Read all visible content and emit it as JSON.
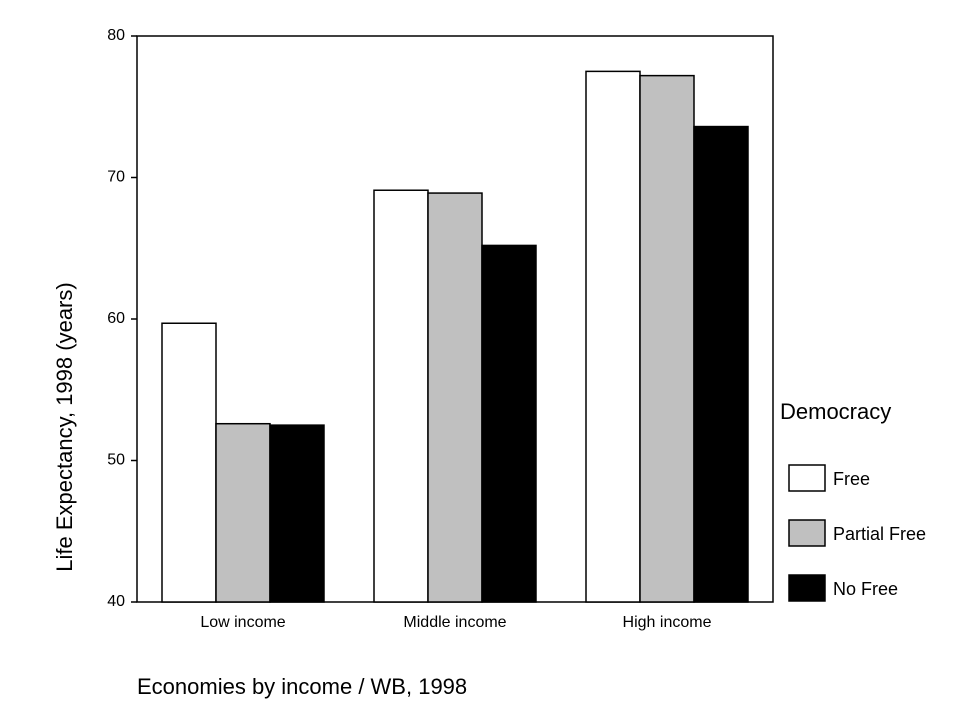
{
  "chart_data": {
    "type": "bar",
    "x_label": "Economies by income / WB, 1998",
    "y_label": "Life Expectancy, 1998 (years)",
    "categories": [
      "Low income",
      "Middle income",
      "High income"
    ],
    "series": [
      {
        "name": "Free",
        "color": "#ffffff",
        "values": [
          59.7,
          69.1,
          77.5
        ]
      },
      {
        "name": "Partial Free",
        "color": "#c0c0c0",
        "values": [
          52.6,
          68.9,
          77.2
        ]
      },
      {
        "name": "No Free",
        "color": "#000000",
        "values": [
          52.5,
          65.2,
          73.6
        ]
      }
    ],
    "legend_title": "Democracy",
    "legend_position": "right",
    "ylim": [
      40,
      80
    ],
    "yticks": [
      40,
      50,
      60,
      70,
      80
    ],
    "grid": false
  }
}
